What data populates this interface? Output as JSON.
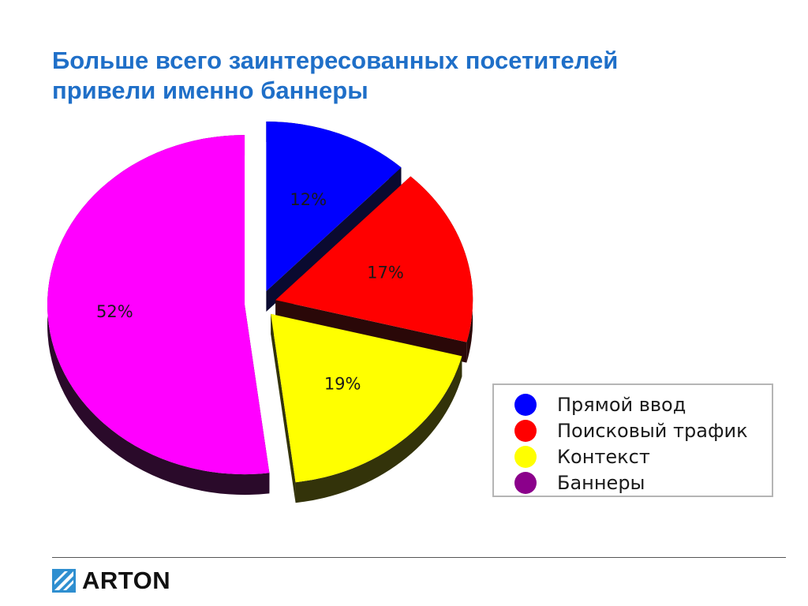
{
  "slide": {
    "title_line1": "Больше всего заинтересованных посетителей",
    "title_line2": "привели именно баннеры",
    "title_color": "#1f6fc8"
  },
  "chart_data": {
    "type": "pie",
    "title": "",
    "style": "3d-exploded",
    "series": [
      {
        "name": "Прямой ввод",
        "value": 12,
        "label": "12%",
        "color": "#0000ff"
      },
      {
        "name": "Поисковый трафик",
        "value": 17,
        "label": "17%",
        "color": "#ff0000"
      },
      {
        "name": "Контекст",
        "value": 19,
        "label": "19%",
        "color": "#ffff00"
      },
      {
        "name": "Баннеры",
        "value": 52,
        "label": "52%",
        "color": "#ff00ff"
      }
    ],
    "legend_position": "bottom-right"
  },
  "legend": {
    "items": [
      {
        "label": "Прямой ввод",
        "color": "#0000ff"
      },
      {
        "label": "Поисковый трафик",
        "color": "#ff0000"
      },
      {
        "label": "Контекст",
        "color": "#ffff00"
      },
      {
        "label": "Баннеры",
        "color": "#8b008b"
      }
    ]
  },
  "footer": {
    "logo_text": "ARTON",
    "logo_icon": "arton-logo-icon"
  }
}
